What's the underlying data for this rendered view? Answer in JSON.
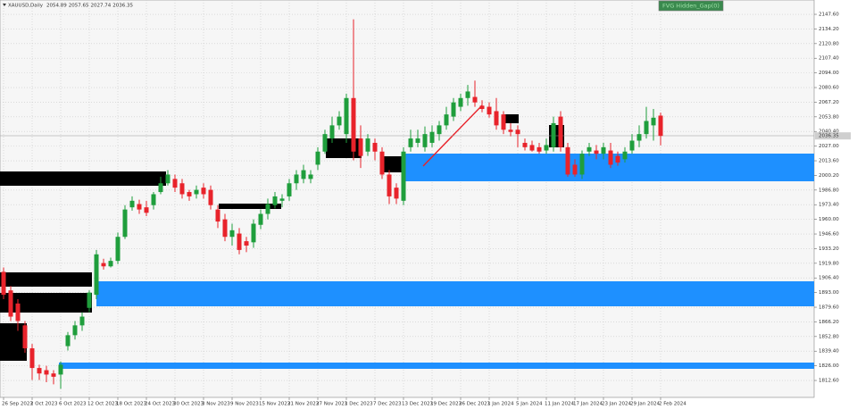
{
  "chart_data": {
    "type": "candlestick",
    "symbol": "XAUUSD,Daily",
    "indicator_label": "FVG Hidden_Gap(0)",
    "categories": [
      "26 Sep 2023",
      null,
      null,
      null,
      "2 Oct 2023",
      null,
      null,
      null,
      "6 Oct 2023",
      null,
      null,
      null,
      "12 Oct 2023",
      null,
      null,
      null,
      "18 Oct 2023",
      null,
      null,
      null,
      "24 Oct 2023",
      null,
      null,
      null,
      "30 Oct 2023",
      null,
      null,
      null,
      "3 Nov 2023",
      null,
      null,
      null,
      "9 Nov 2023",
      null,
      null,
      null,
      "15 Nov 2023",
      null,
      null,
      null,
      "21 Nov 2023",
      null,
      null,
      null,
      "27 Nov 2023",
      null,
      null,
      null,
      "1 Dec 2023",
      null,
      null,
      null,
      "7 Dec 2023",
      null,
      null,
      null,
      "13 Dec 2023",
      null,
      null,
      null,
      "19 Dec 2023",
      null,
      null,
      null,
      "26 Dec 2023",
      null,
      null,
      null,
      "1 Jan 2024",
      null,
      null,
      null,
      "5 Jan 2024",
      null,
      null,
      null,
      "11 Jan 2024",
      null,
      null,
      null,
      "17 Jan 2024",
      null,
      null,
      null,
      "23 Jan 2024",
      null,
      null,
      null,
      "29 Jan 2024",
      null,
      null,
      null,
      "2 Feb 2024"
    ],
    "open": [
      1912,
      1895,
      1883,
      1863,
      1842,
      1824,
      1822,
      1819,
      1818,
      1844,
      1854,
      1863,
      1879,
      1891,
      1920,
      1917,
      1922,
      1944,
      1971,
      1974,
      1971,
      1973,
      1985,
      1993,
      1997,
      1993,
      1985,
      1983,
      1989,
      1987,
      1969,
      1960,
      1944,
      1947,
      1940,
      1939,
      1955,
      1965,
      1973,
      1977,
      1981,
      1993,
      1997,
      1997,
      2010,
      2022,
      2034,
      2046,
      2038,
      2071,
      2034,
      2022,
      2030,
      2022,
      2001,
      1989,
      1977,
      2026,
      2030,
      2026,
      2030,
      2038,
      2046,
      2054,
      2063,
      2071,
      2072,
      2064,
      2063,
      2059,
      2056,
      2042,
      2042,
      2030,
      2028,
      2026,
      2023,
      2026,
      2054,
      2026,
      2010,
      2001,
      2022,
      2023,
      2020,
      2023,
      2018,
      2015,
      2023,
      2032,
      2038,
      2046,
      2054.89
    ],
    "high": [
      1916,
      1899,
      1887,
      1867,
      1846,
      1827,
      1826,
      1822,
      1830,
      1857,
      1867,
      1875,
      1895,
      1932,
      1924,
      1925,
      1948,
      1973,
      1981,
      1978,
      1977,
      1985,
      1999,
      2005,
      2001,
      1997,
      1987,
      1991,
      1993,
      1991,
      1973,
      1965,
      1956,
      1952,
      1944,
      1960,
      1969,
      1979,
      1985,
      1983,
      1997,
      2005,
      2010,
      2005,
      2026,
      2042,
      2054,
      2059,
      2075,
      2143,
      2046,
      2038,
      2034,
      2026,
      2005,
      1993,
      2026,
      2042,
      2042,
      2045,
      2046,
      2050,
      2063,
      2071,
      2075,
      2083,
      2087,
      2069,
      2067,
      2071,
      2059,
      2048,
      2046,
      2034,
      2032,
      2030,
      2034,
      2054,
      2059,
      2030,
      2015,
      2023,
      2030,
      2028,
      2030,
      2030,
      2022,
      2026,
      2038,
      2046,
      2063,
      2061,
      2057.65
    ],
    "low": [
      1887,
      1867,
      1858,
      1838,
      1813,
      1813,
      1811,
      1809,
      1805,
      1840,
      1850,
      1858,
      1875,
      1887,
      1914,
      1916,
      1919,
      1942,
      1968,
      1965,
      1963,
      1969,
      1983,
      1991,
      1985,
      1979,
      1977,
      1979,
      1979,
      1969,
      1952,
      1940,
      1936,
      1928,
      1930,
      1934,
      1951,
      1960,
      1970,
      1971,
      1977,
      1987,
      1993,
      1993,
      2005,
      2020,
      2030,
      2042,
      2030,
      2014,
      2007,
      2018,
      2014,
      1997,
      1974,
      1974,
      1973,
      2022,
      2026,
      2022,
      2026,
      2032,
      2042,
      2050,
      2059,
      2064,
      2063,
      2058,
      2053,
      2042,
      2038,
      2036,
      2026,
      2023,
      2022,
      2020,
      2020,
      2022,
      2022,
      1999,
      1999,
      1997,
      2018,
      2015,
      2015,
      2007,
      2009,
      2012,
      2020,
      2026,
      2034,
      2032,
      2027.74
    ],
    "close": [
      1891,
      1871,
      1867,
      1842,
      1824,
      1819,
      1818,
      1816,
      1827,
      1854,
      1863,
      1871,
      1893,
      1928,
      1917,
      1922,
      1944,
      1969,
      1977,
      1969,
      1966,
      1983,
      1993,
      2001,
      1989,
      1983,
      1981,
      1987,
      1983,
      1973,
      1958,
      1944,
      1950,
      1932,
      1936,
      1956,
      1965,
      1974,
      1981,
      1979,
      1993,
      2001,
      2005,
      2001,
      2022,
      2038,
      2046,
      2054,
      2071,
      2022,
      2018,
      2034,
      2022,
      2001,
      1981,
      1979,
      2022,
      2034,
      2034,
      2038,
      2040,
      2046,
      2056,
      2067,
      2071,
      2077,
      2067,
      2061,
      2056,
      2046,
      2042,
      2040,
      2038,
      2026,
      2023,
      2022,
      2028,
      2048,
      2026,
      2001,
      2001,
      2020,
      2026,
      2020,
      2026,
      2010,
      2012,
      2022,
      2032,
      2038,
      2050,
      2053,
      2036.35
    ],
    "up_color": "#1f9e3c",
    "down_color": "#e8232b",
    "ylim": [
      1797.1,
      2160.7
    ],
    "yticks": [
      {
        "value": 2147.6,
        "label": "2147.60"
      },
      {
        "value": 2134.2,
        "label": "2134.20"
      },
      {
        "value": 2120.8,
        "label": "2120.80"
      },
      {
        "value": 2107.4,
        "label": "2107.40"
      },
      {
        "value": 2094,
        "label": "2094.00"
      },
      {
        "value": 2080.6,
        "label": "2080.60"
      },
      {
        "value": 2067.2,
        "label": "2067.20"
      },
      {
        "value": 2053.8,
        "label": "2053.80"
      },
      {
        "value": 2040.4,
        "label": "2040.40"
      },
      {
        "value": 2027,
        "label": "2027.00"
      },
      {
        "value": 2013.6,
        "label": "2013.60"
      },
      {
        "value": 2000.2,
        "label": "2000.20"
      },
      {
        "value": 1986.8,
        "label": "1986.80"
      },
      {
        "value": 1973.4,
        "label": "1973.40"
      },
      {
        "value": 1960,
        "label": "1960.00"
      },
      {
        "value": 1946.6,
        "label": "1946.60"
      },
      {
        "value": 1933.2,
        "label": "1933.20"
      },
      {
        "value": 1919.8,
        "label": "1919.80"
      },
      {
        "value": 1906.4,
        "label": "1906.40"
      },
      {
        "value": 1893,
        "label": "1893.00"
      },
      {
        "value": 1879.6,
        "label": "1879.60"
      },
      {
        "value": 1866.2,
        "label": "1866.20"
      },
      {
        "value": 1852.8,
        "label": "1852.80"
      },
      {
        "value": 1839.4,
        "label": "1839.40"
      },
      {
        "value": 1826,
        "label": "1826.00"
      },
      {
        "value": 1812.6,
        "label": "1812.60"
      }
    ],
    "grid": true
  }
}
